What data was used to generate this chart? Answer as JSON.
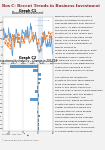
{
  "title": "Box C: Recent Trends in Business Investment",
  "graph1_title": "Graph C1",
  "graph1_subtitle": "Business Investment",
  "graph2_title": "Graph C2",
  "graph2_subtitle": "Investment by Industry – Change in 2012/13",
  "line1_color": "#5b9bd5",
  "line2_color": "#ed7d31",
  "shaded_color": "#dce6f1",
  "bar_color": "#5b9bd5",
  "page_bg": "#f2f2f2",
  "chart_bg": "#ffffff",
  "title_color": "#8b1a1a",
  "text_color": "#1a1a1a",
  "bar_categories": [
    "Mining",
    "Manufacturing",
    "Finance & insurance",
    "Rental, hire & real estate",
    "Health care & social",
    "Wholesale trade",
    "Transport, postal &",
    "Information media &",
    "Electricity, gas, water",
    "Retail trade",
    "Arts & recreation",
    "Accommodation & food",
    "Construction",
    "Professional, scientific",
    "Agriculture, forestry",
    "Education & training"
  ],
  "bar_values": [
    -9.5,
    -1.8,
    1.2,
    0.9,
    0.7,
    -0.4,
    -0.9,
    0.5,
    -2.8,
    0.3,
    0.1,
    -0.2,
    0.8,
    0.4,
    0.2,
    0.3
  ],
  "text_lines": [
    "Business investment has had a",
    "strong contribution to growth in",
    "aggregate demand over the past",
    "few years. As with consumption,",
    "the recent slowing in mining",
    "investment is a key reason why",
    "growth overall has been below",
    "trend. The slowing in mining",
    "investment is a combination of",
    "twenty percent to",
    "social and domestic demand. Both",
    "levels of capacity utilisation and",
    "profitability remain supportive",
    "for dwelling price, in aggregate,",
    "construction is now widening the",
    "contraction observed in some",
    "other states is already in course.",
    "",
    "The outlook for investment",
    "growth in the near term appears",
    "to be challenging. Given the",
    "scale of the recent expansion,",
    "this has seen a recent robust expansion",
    "in commercial rent, the positive",
    "outlook is consistent. The",
    "commentary, where investment",
    "growth has been limited. Rural",
    "capital construction below the",
    "average-term includes growth",
    "likely to undergo major",
    "construction below the average",
    "increasing balance growth early",
    "trend. The financial outlook",
    "remains an essential component",
    "of robust capital consequences."
  ]
}
